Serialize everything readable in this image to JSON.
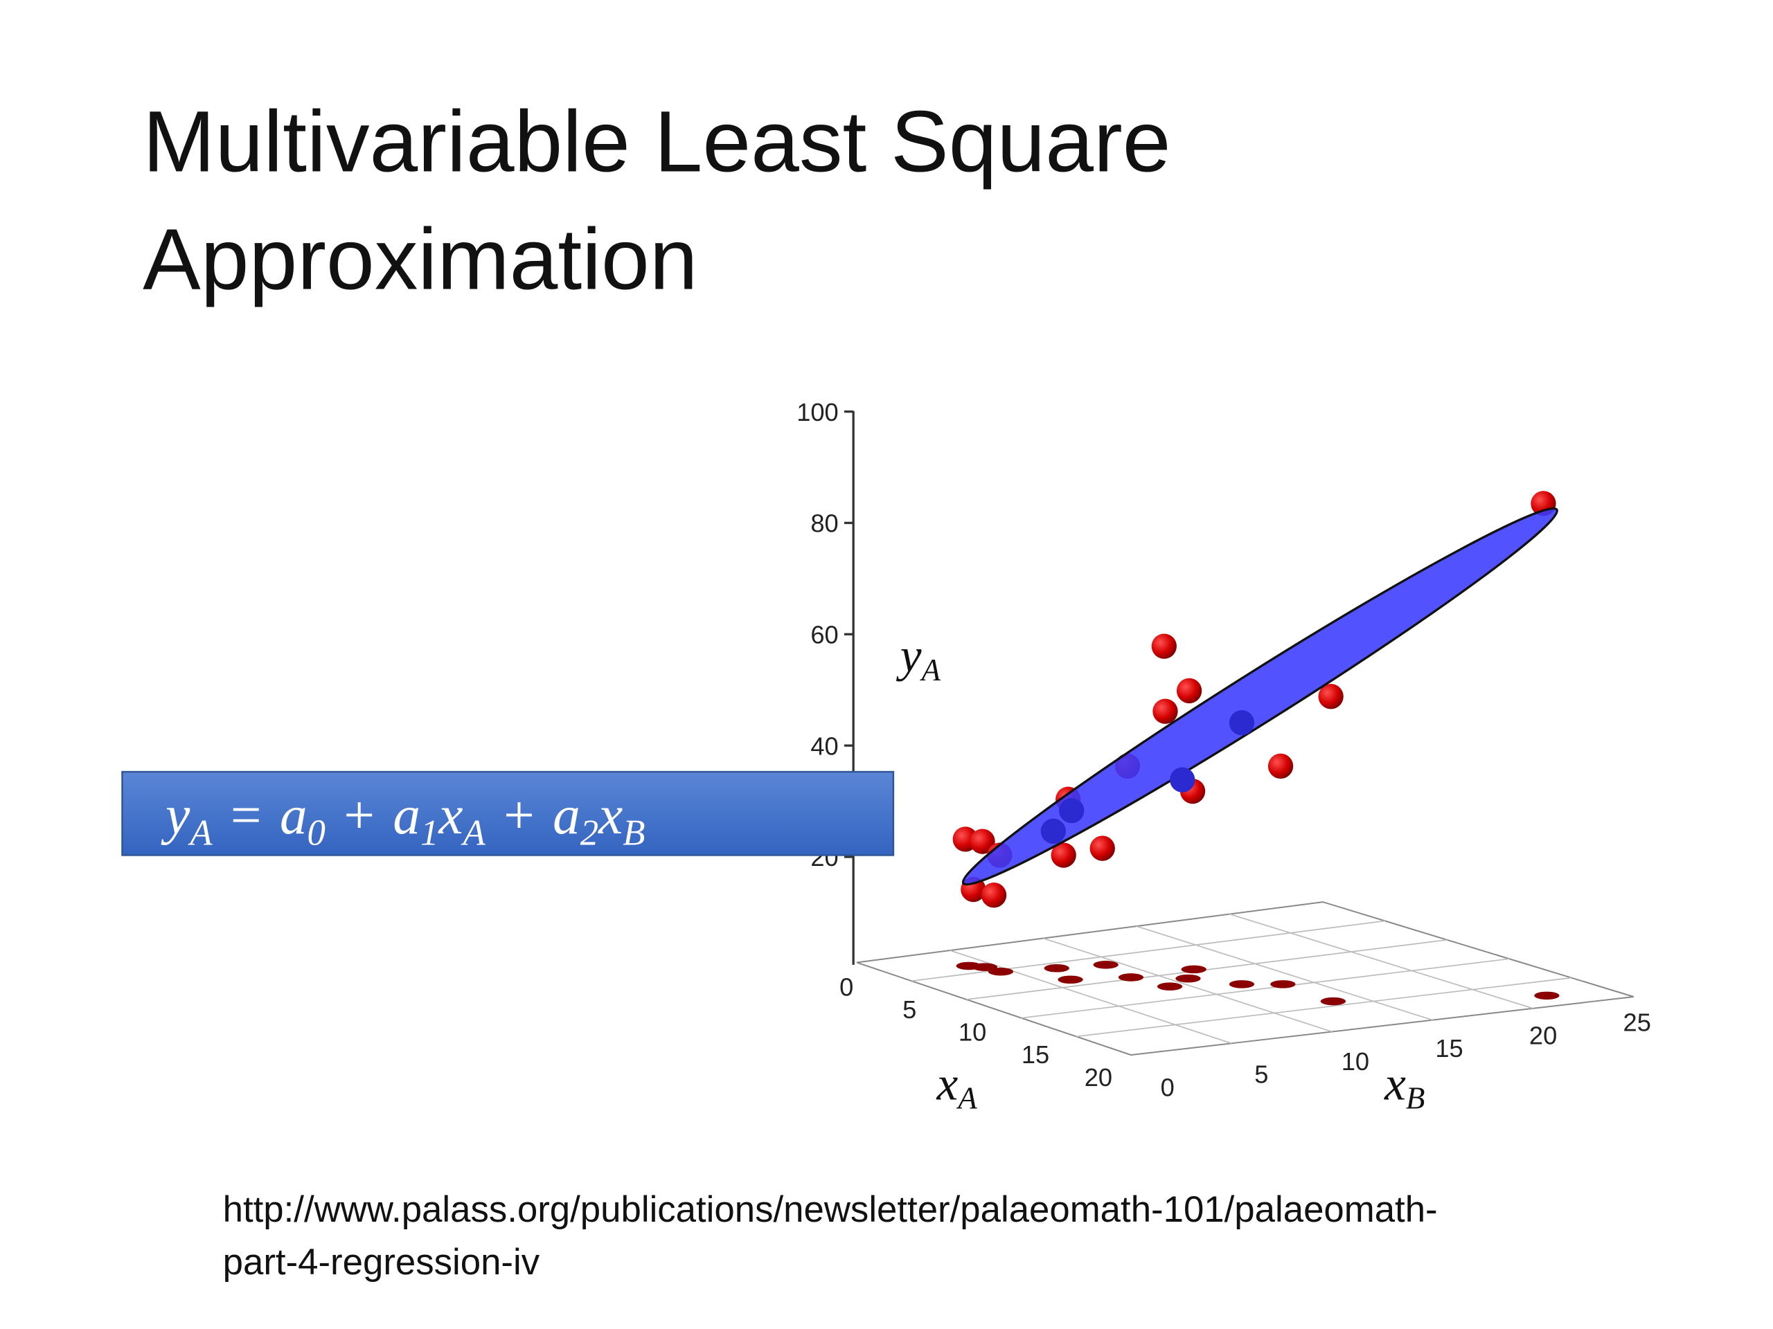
{
  "slide": {
    "title": [
      "Multivariable Least Square",
      "Approximation"
    ],
    "figure": {
      "y_ticks": [
        20,
        40,
        60,
        80,
        100
      ],
      "xa_ticks": [
        0,
        5,
        10,
        15,
        20
      ],
      "xb_ticks": [
        0,
        5,
        10,
        15,
        20,
        25
      ],
      "y_label": [
        "y",
        "A"
      ],
      "xa_label": [
        "x",
        "A"
      ],
      "xb_label": [
        "x",
        "B"
      ]
    },
    "equation": [
      "y",
      "A",
      "=",
      "a",
      "0",
      "+",
      "a",
      "1",
      "x",
      "A",
      "+",
      "a",
      "2",
      "x",
      "B"
    ],
    "source": [
      "http://www.palass.org/publications/newsletter/palaeomath-101/palaeomath-",
      "part-4-regression-iv"
    ]
  }
}
